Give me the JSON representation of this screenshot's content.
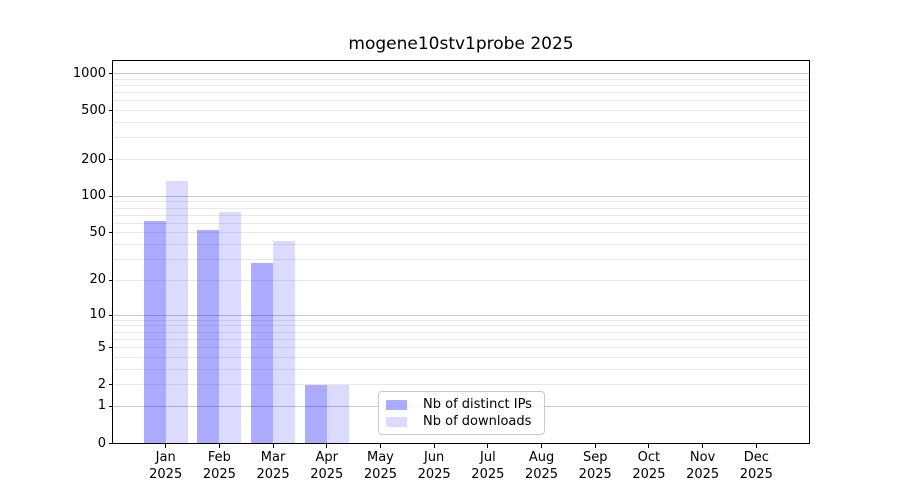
{
  "title": "mogene10stv1probe 2025",
  "chart_data": {
    "type": "bar",
    "title": "mogene10stv1probe 2025",
    "categories": [
      "Jan",
      "Feb",
      "Mar",
      "Apr",
      "May",
      "Jun",
      "Jul",
      "Aug",
      "Sep",
      "Oct",
      "Nov",
      "Dec"
    ],
    "x_year_label": "2025",
    "series": [
      {
        "name": "Nb of distinct IPs",
        "color": "rgba(0,0,255,0.33)",
        "values": [
          63,
          53,
          28,
          2,
          0,
          0,
          0,
          0,
          0,
          0,
          0,
          0
        ]
      },
      {
        "name": "Nb of downloads",
        "color": "rgba(0,0,255,0.14)",
        "values": [
          133,
          75,
          43,
          2,
          0,
          0,
          0,
          0,
          0,
          0,
          0,
          0
        ]
      }
    ],
    "yscale": "log10(1+x)",
    "ylim": [
      0,
      1289
    ],
    "yticks": [
      0,
      1,
      2,
      5,
      10,
      20,
      50,
      100,
      200,
      500,
      1000
    ],
    "major_gridline_values": [
      1,
      10,
      100,
      1000
    ],
    "minor_gridline_values": [
      2,
      3,
      4,
      5,
      6,
      7,
      8,
      9,
      20,
      30,
      40,
      50,
      60,
      70,
      80,
      90,
      200,
      300,
      400,
      500,
      600,
      700,
      800,
      900
    ],
    "grid": true,
    "legend_position": "lower center (inside axes)",
    "xlabel": "",
    "ylabel": ""
  },
  "colors": {
    "background": "#ffffff",
    "axis": "#000000",
    "major_grid": "#c6c6c6",
    "minor_grid": "#e9e9e9",
    "bar_distinct_ips": "rgba(0,0,255,0.33)",
    "bar_downloads": "rgba(0,0,255,0.14)"
  }
}
